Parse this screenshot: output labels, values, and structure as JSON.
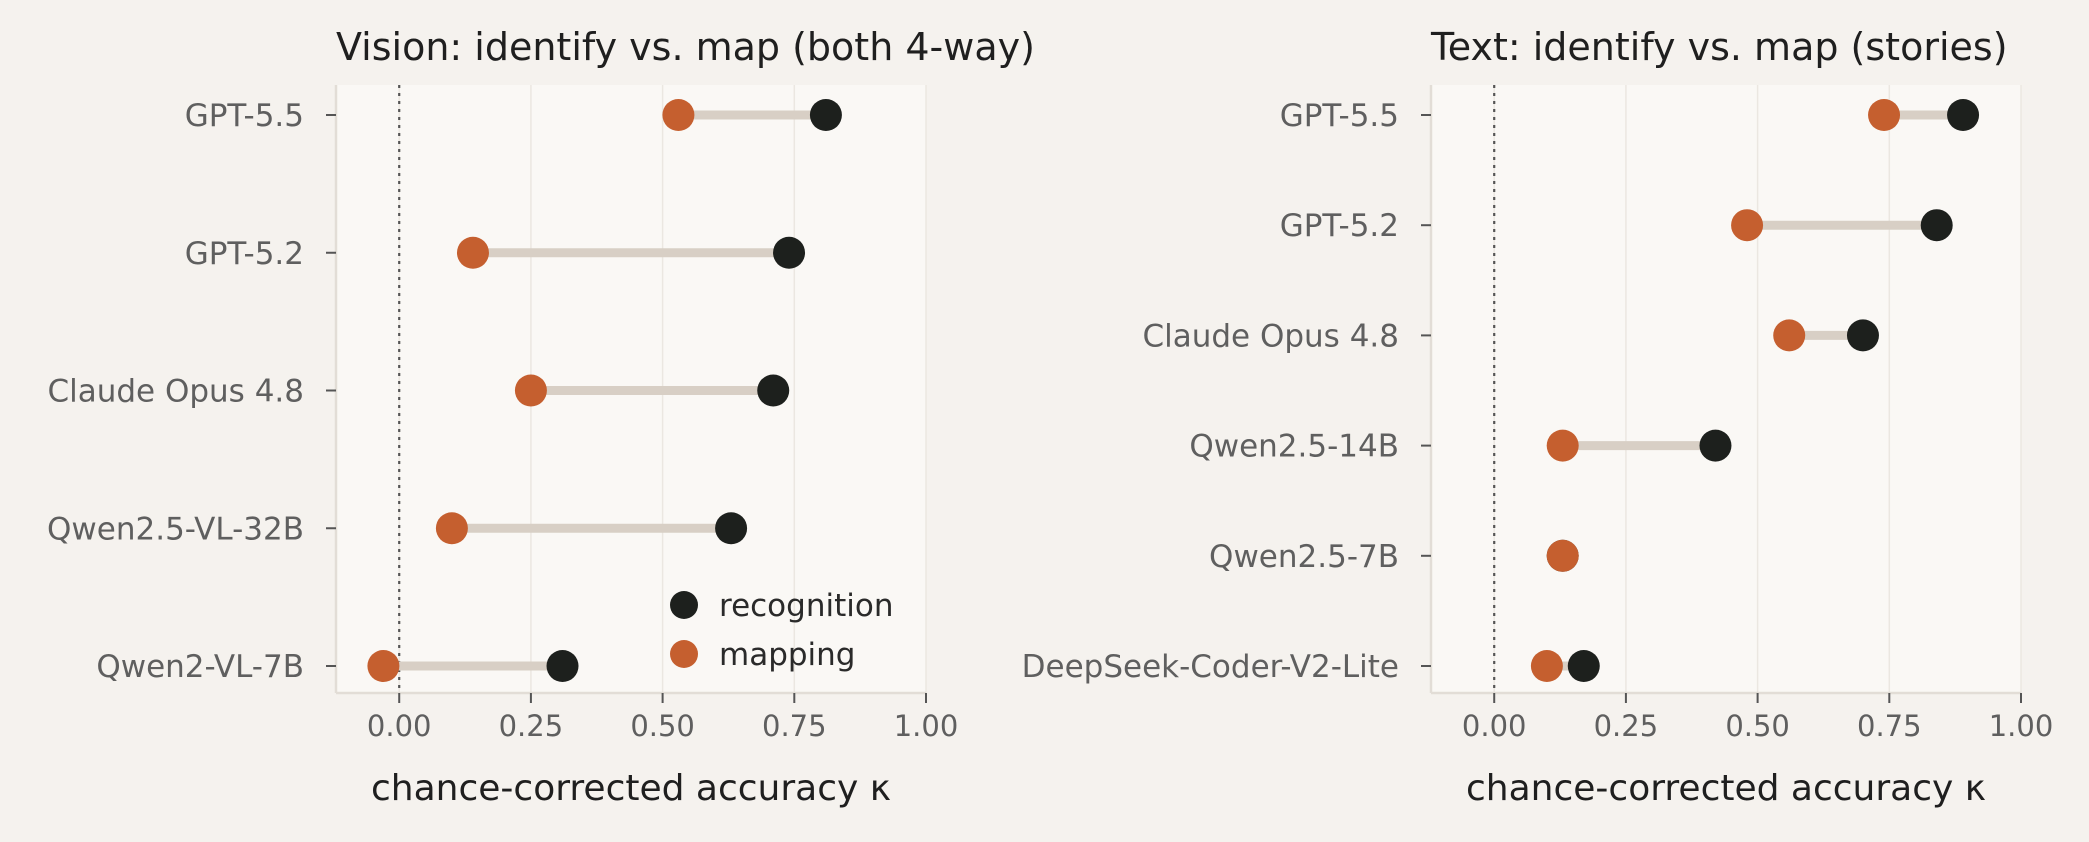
{
  "colors": {
    "page_bg": "#f5f2ee",
    "plot_bg": "#faf8f5",
    "recognition": "#1d201d",
    "mapping": "#c55f2f",
    "connector": "#d8cfc5",
    "zero_line": "#555555",
    "grid": "#ebe7e1",
    "spine": "#e2ddd6"
  },
  "chart_data": [
    {
      "type": "dumbbell",
      "title": "Vision: identify vs. map (both 4-way)",
      "xlabel": "chance-corrected accuracy κ",
      "ylabel": "",
      "xlim": [
        -0.12,
        1.0
      ],
      "xticks": [
        "0.00",
        "0.25",
        "0.50",
        "0.75",
        "1.00"
      ],
      "grid": "vertical",
      "legend": {
        "placement": "lower-right",
        "entries": [
          "recognition",
          "mapping"
        ]
      },
      "categories": [
        "GPT-5.5",
        "GPT-5.2",
        "Claude Opus 4.8",
        "Qwen2.5-VL-32B",
        "Qwen2-VL-7B"
      ],
      "series": [
        {
          "name": "recognition",
          "values": [
            0.81,
            0.74,
            0.71,
            0.63,
            0.31
          ]
        },
        {
          "name": "mapping",
          "values": [
            0.53,
            0.14,
            0.25,
            0.1,
            -0.03
          ]
        }
      ]
    },
    {
      "type": "dumbbell",
      "title": "Text: identify vs. map (stories)",
      "xlabel": "chance-corrected accuracy κ",
      "ylabel": "",
      "xlim": [
        -0.12,
        1.0
      ],
      "xticks": [
        "0.00",
        "0.25",
        "0.50",
        "0.75",
        "1.00"
      ],
      "grid": "vertical",
      "categories": [
        "GPT-5.5",
        "GPT-5.2",
        "Claude Opus 4.8",
        "Qwen2.5-14B",
        "Qwen2.5-7B",
        "DeepSeek-Coder-V2-Lite"
      ],
      "series": [
        {
          "name": "recognition",
          "values": [
            0.89,
            0.84,
            0.7,
            0.42,
            0.13,
            0.17
          ]
        },
        {
          "name": "mapping",
          "values": [
            0.74,
            0.48,
            0.56,
            0.13,
            0.13,
            0.1
          ]
        }
      ]
    }
  ]
}
